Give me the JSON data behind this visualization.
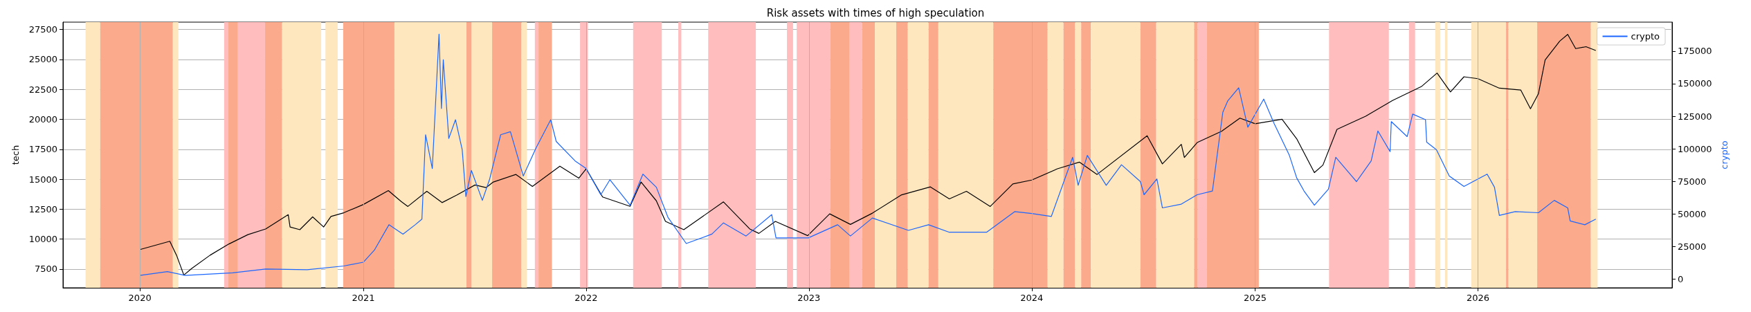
{
  "chart_data": {
    "type": "line",
    "title": "Risk assets with times of high speculation",
    "ylabel": "tech",
    "y2label": "crypto",
    "xlim": [
      "2019-08-28",
      "2026-11-15"
    ],
    "xticks": [
      {
        "value": "2020-01-01",
        "label": "2020"
      },
      {
        "value": "2021-01-01",
        "label": "2021"
      },
      {
        "value": "2022-01-01",
        "label": "2022"
      },
      {
        "value": "2023-01-01",
        "label": "2023"
      },
      {
        "value": "2024-01-01",
        "label": "2024"
      },
      {
        "value": "2025-01-01",
        "label": "2025"
      },
      {
        "value": "2026-01-01",
        "label": "2026"
      }
    ],
    "ylim": [
      5940,
      28110
    ],
    "yticks": [
      7500,
      10000,
      12500,
      15000,
      17500,
      20000,
      22500,
      25000,
      27500
    ],
    "y2lim": [
      -6620,
      197200
    ],
    "y2ticks": [
      0,
      25000,
      50000,
      75000,
      100000,
      125000,
      150000,
      175000
    ],
    "grid": true,
    "legend": "top right",
    "marker": "none",
    "series": [
      {
        "color": "#000000",
        "x": [
          "2020-01-01",
          "2020-02-19",
          "2020-03-01",
          "2020-03-13",
          "2020-03-26",
          "2020-04-25",
          "2020-05-26",
          "2020-06-26",
          "2020-07-25",
          "2020-08-31",
          "2020-09-03",
          "2020-09-19",
          "2020-10-10",
          "2020-10-28",
          "2020-11-09",
          "2020-11-30",
          "2021-01-01",
          "2021-02-11",
          "2021-03-04",
          "2021-03-15",
          "2021-04-15",
          "2021-05-10",
          "2021-06-03",
          "2021-07-03",
          "2021-07-21",
          "2021-08-02",
          "2021-09-08",
          "2021-10-05",
          "2021-11-19",
          "2021-12-20",
          "2022-01-01",
          "2022-01-28",
          "2022-03-14",
          "2022-04-01",
          "2022-04-26",
          "2022-05-11",
          "2022-06-10",
          "2022-08-14",
          "2022-09-26",
          "2022-10-11",
          "2022-11-07",
          "2022-12-30",
          "2023-02-04",
          "2023-03-10",
          "2023-04-15",
          "2023-06-01",
          "2023-07-19",
          "2023-08-19",
          "2023-09-16",
          "2023-10-25",
          "2023-12-01",
          "2024-01-01",
          "2024-02-12",
          "2024-03-19",
          "2024-04-17",
          "2024-07-08",
          "2024-08-02",
          "2024-09-02",
          "2024-09-07",
          "2024-09-28",
          "2024-11-07",
          "2024-12-07",
          "2025-01-01",
          "2025-02-14",
          "2025-03-10",
          "2025-04-08",
          "2025-04-22",
          "2025-05-15",
          "2025-07-01",
          "2025-08-14",
          "2025-10-01",
          "2025-10-26",
          "2025-11-17",
          "2025-12-09",
          "2026-01-01",
          "2026-02-05",
          "2026-03-12",
          "2026-03-28",
          "2026-04-10",
          "2026-04-21",
          "2026-05-15",
          "2026-05-28",
          "2026-06-10",
          "2026-06-27",
          "2026-07-13"
        ],
        "values": [
          9130,
          9820,
          8660,
          7000,
          7560,
          8660,
          9600,
          10380,
          10850,
          12040,
          11010,
          10790,
          11860,
          11010,
          11890,
          12200,
          12890,
          14050,
          13140,
          12730,
          13990,
          13050,
          13680,
          14520,
          14300,
          14770,
          15400,
          14400,
          16090,
          15090,
          15870,
          13520,
          12740,
          14770,
          13200,
          11480,
          10790,
          13110,
          10850,
          10480,
          11480,
          10290,
          12110,
          11230,
          12170,
          13680,
          14360,
          13360,
          13990,
          12730,
          14610,
          14930,
          15870,
          16430,
          15400,
          18630,
          16280,
          17910,
          16810,
          18060,
          19000,
          20100,
          19630,
          20010,
          18380,
          15550,
          16180,
          19160,
          20260,
          21570,
          22760,
          23860,
          22290,
          23550,
          23390,
          22600,
          22450,
          20880,
          22130,
          24950,
          26530,
          27090,
          25900,
          26060,
          25740
        ]
      },
      {
        "name": "crypto",
        "color": "#1a66ff",
        "axis": "y2",
        "x": [
          "2020-01-01",
          "2020-02-15",
          "2020-03-15",
          "2020-06-01",
          "2020-07-25",
          "2020-10-01",
          "2020-11-30",
          "2021-01-01",
          "2021-01-19",
          "2021-02-12",
          "2021-03-07",
          "2021-03-27",
          "2021-04-07",
          "2021-04-13",
          "2021-04-24",
          "2021-05-05",
          "2021-05-09",
          "2021-05-12",
          "2021-05-21",
          "2021-06-01",
          "2021-06-12",
          "2021-06-18",
          "2021-06-27",
          "2021-07-15",
          "2021-07-27",
          "2021-08-14",
          "2021-08-30",
          "2021-09-20",
          "2021-10-11",
          "2021-11-04",
          "2021-11-13",
          "2021-12-14",
          "2022-01-01",
          "2022-01-25",
          "2022-02-09",
          "2022-03-14",
          "2022-04-04",
          "2022-04-26",
          "2022-05-15",
          "2022-06-14",
          "2022-07-26",
          "2022-08-14",
          "2022-09-20",
          "2022-11-01",
          "2022-11-08",
          "2022-12-31",
          "2023-02-17",
          "2023-03-10",
          "2023-04-15",
          "2023-06-13",
          "2023-07-16",
          "2023-08-19",
          "2023-10-19",
          "2023-12-04",
          "2024-01-01",
          "2024-02-02",
          "2024-03-08",
          "2024-03-17",
          "2024-04-01",
          "2024-05-02",
          "2024-05-27",
          "2024-06-27",
          "2024-07-03",
          "2024-07-24",
          "2024-08-02",
          "2024-09-02",
          "2024-09-28",
          "2024-10-23",
          "2024-11-09",
          "2024-11-17",
          "2024-12-05",
          "2024-12-20",
          "2025-01-15",
          "2025-02-01",
          "2025-02-26",
          "2025-03-10",
          "2025-03-22",
          "2025-04-08",
          "2025-05-01",
          "2025-05-13",
          "2025-06-16",
          "2025-07-10",
          "2025-07-21",
          "2025-08-10",
          "2025-08-12",
          "2025-09-07",
          "2025-09-16",
          "2025-10-07",
          "2025-10-09",
          "2025-10-25",
          "2025-11-15",
          "2025-12-09",
          "2026-01-16",
          "2026-01-28",
          "2026-02-05",
          "2026-03-03",
          "2026-04-10",
          "2026-05-06",
          "2026-05-28",
          "2026-06-01",
          "2026-06-25",
          "2026-07-13"
        ],
        "values": [
          2900,
          5780,
          2900,
          4900,
          7800,
          7200,
          10100,
          13000,
          22200,
          41750,
          34560,
          41750,
          46070,
          110820,
          84920,
          187950,
          130970,
          168380,
          107940,
          122330,
          99310,
          63340,
          83480,
          60460,
          76860,
          110820,
          113120,
          79160,
          100750,
          122330,
          105640,
          90670,
          84920,
          64770,
          76290,
          56710,
          80600,
          70530,
          47500,
          27360,
          34560,
          43190,
          33110,
          49520,
          31680,
          31680,
          41750,
          33110,
          46930,
          37430,
          41750,
          36000,
          36000,
          51820,
          50380,
          48080,
          93550,
          71970,
          94990,
          71970,
          87800,
          74850,
          64770,
          76860,
          54700,
          57580,
          64770,
          67650,
          128090,
          136720,
          146800,
          116580,
          138160,
          119460,
          94990,
          77720,
          67650,
          56710,
          69090,
          93550,
          74850,
          90670,
          113700,
          97870,
          120900,
          109380,
          126650,
          122330,
          105060,
          99310,
          79160,
          71100,
          80600,
          70530,
          48940,
          51820,
          50960,
          60460,
          54700,
          44630,
          41750,
          46070
        ]
      }
    ],
    "bands": [
      {
        "axis": "x",
        "from": "2019-10-04",
        "to": "2019-10-28",
        "color": "#fee6bf"
      },
      {
        "axis": "x",
        "from": "2019-10-28",
        "to": "2020-02-24",
        "color": "#fbab8c"
      },
      {
        "axis": "x",
        "from": "2020-02-24",
        "to": "2020-03-04",
        "color": "#fee6bf"
      },
      {
        "axis": "x",
        "from": "2020-05-18",
        "to": "2020-07-24",
        "color": "#ffbdbd"
      },
      {
        "axis": "x",
        "from": "2020-05-25",
        "to": "2020-06-09",
        "color": "#fbab8c"
      },
      {
        "axis": "x",
        "from": "2020-07-24",
        "to": "2020-08-21",
        "color": "#fbab8c"
      },
      {
        "axis": "x",
        "from": "2020-08-21",
        "to": "2020-10-24",
        "color": "#fee6bf"
      },
      {
        "axis": "x",
        "from": "2020-10-31",
        "to": "2020-11-20",
        "color": "#fee6bf"
      },
      {
        "axis": "x",
        "from": "2020-11-29",
        "to": "2021-02-21",
        "color": "#fbab8c"
      },
      {
        "axis": "x",
        "from": "2021-02-21",
        "to": "2021-07-31",
        "color": "#fee6bf"
      },
      {
        "axis": "x",
        "from": "2021-06-19",
        "to": "2021-06-27",
        "color": "#fbab8c"
      },
      {
        "axis": "x",
        "from": "2021-07-31",
        "to": "2021-09-17",
        "color": "#fbab8c"
      },
      {
        "axis": "x",
        "from": "2021-09-17",
        "to": "2021-09-26",
        "color": "#fee6bf"
      },
      {
        "axis": "x",
        "from": "2021-10-09",
        "to": "2021-10-15",
        "color": "#ffbdbd"
      },
      {
        "axis": "x",
        "from": "2021-10-15",
        "to": "2021-11-06",
        "color": "#fbab8c"
      },
      {
        "axis": "x",
        "from": "2021-12-22",
        "to": "2022-01-04",
        "color": "#ffbdbd"
      },
      {
        "axis": "x",
        "from": "2022-03-19",
        "to": "2022-05-05",
        "color": "#ffbdbd"
      },
      {
        "axis": "x",
        "from": "2022-06-01",
        "to": "2022-06-06",
        "color": "#ffbdbd"
      },
      {
        "axis": "x",
        "from": "2022-07-20",
        "to": "2022-10-06",
        "color": "#ffbdbd"
      },
      {
        "axis": "x",
        "from": "2022-11-26",
        "to": "2022-12-06",
        "color": "#ffbdbd"
      },
      {
        "axis": "x",
        "from": "2022-12-12",
        "to": "2023-02-05",
        "color": "#ffbdbd"
      },
      {
        "axis": "x",
        "from": "2023-02-05",
        "to": "2023-03-08",
        "color": "#fbab8c"
      },
      {
        "axis": "x",
        "from": "2023-03-08",
        "to": "2023-03-29",
        "color": "#ffbdbd"
      },
      {
        "axis": "x",
        "from": "2023-03-29",
        "to": "2023-04-19",
        "color": "#fbab8c"
      },
      {
        "axis": "x",
        "from": "2023-04-19",
        "to": "2023-05-24",
        "color": "#fee6bf"
      },
      {
        "axis": "x",
        "from": "2023-05-24",
        "to": "2023-06-12",
        "color": "#fbab8c"
      },
      {
        "axis": "x",
        "from": "2023-06-12",
        "to": "2023-07-16",
        "color": "#fee6bf"
      },
      {
        "axis": "x",
        "from": "2023-07-16",
        "to": "2023-08-01",
        "color": "#fbab8c"
      },
      {
        "axis": "x",
        "from": "2023-08-01",
        "to": "2023-10-30",
        "color": "#fee6bf"
      },
      {
        "axis": "x",
        "from": "2023-10-30",
        "to": "2024-01-27",
        "color": "#fbab8c"
      },
      {
        "axis": "x",
        "from": "2024-01-27",
        "to": "2024-02-22",
        "color": "#fee6bf"
      },
      {
        "axis": "x",
        "from": "2024-02-22",
        "to": "2024-03-12",
        "color": "#fbab8c"
      },
      {
        "axis": "x",
        "from": "2024-03-12",
        "to": "2024-03-22",
        "color": "#fee6bf"
      },
      {
        "axis": "x",
        "from": "2024-03-22",
        "to": "2024-04-07",
        "color": "#fbab8c"
      },
      {
        "axis": "x",
        "from": "2024-04-07",
        "to": "2024-06-27",
        "color": "#fee6bf"
      },
      {
        "axis": "x",
        "from": "2024-06-27",
        "to": "2024-07-23",
        "color": "#fbab8c"
      },
      {
        "axis": "x",
        "from": "2024-07-23",
        "to": "2024-09-23",
        "color": "#fee6bf"
      },
      {
        "axis": "x",
        "from": "2024-09-23",
        "to": "2024-09-29",
        "color": "#fbab8c"
      },
      {
        "axis": "x",
        "from": "2024-09-29",
        "to": "2024-10-14",
        "color": "#ffbdbd"
      },
      {
        "axis": "x",
        "from": "2024-10-14",
        "to": "2025-01-07",
        "color": "#fbab8c"
      },
      {
        "axis": "x",
        "from": "2025-05-02",
        "to": "2025-08-08",
        "color": "#ffbdbd"
      },
      {
        "axis": "x",
        "from": "2025-09-10",
        "to": "2025-09-20",
        "color": "#ffbdbd"
      },
      {
        "axis": "x",
        "from": "2025-10-23",
        "to": "2025-10-31",
        "color": "#fee6bf"
      },
      {
        "axis": "x",
        "from": "2025-11-08",
        "to": "2025-11-12",
        "color": "#fee6bf"
      },
      {
        "axis": "x",
        "from": "2025-12-21",
        "to": "2026-02-16",
        "color": "#fee6bf"
      },
      {
        "axis": "x",
        "from": "2026-02-16",
        "to": "2026-02-20",
        "color": "#fbab8c"
      },
      {
        "axis": "x",
        "from": "2026-02-20",
        "to": "2026-04-08",
        "color": "#fee6bf"
      },
      {
        "axis": "x",
        "from": "2026-04-08",
        "to": "2026-07-05",
        "color": "#fbab8c"
      },
      {
        "axis": "x",
        "from": "2026-07-05",
        "to": "2026-07-16",
        "color": "#fee6bf"
      }
    ]
  }
}
